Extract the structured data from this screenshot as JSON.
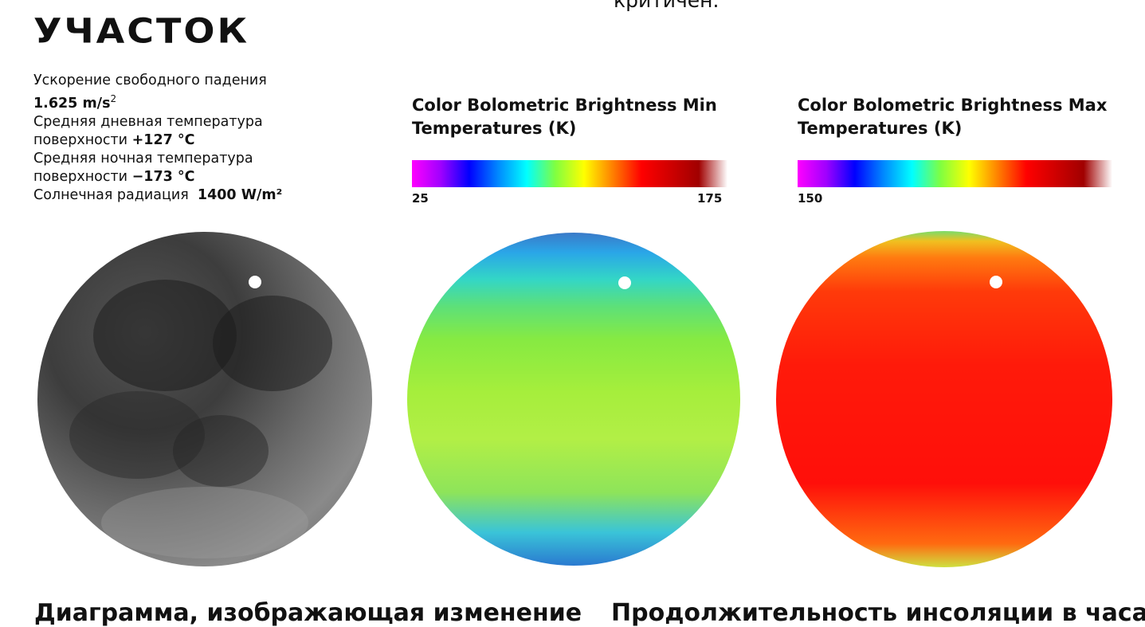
{
  "header": {
    "top_fragment": "критичен.",
    "title": "УЧАСТОК"
  },
  "stats": {
    "gravity_label": "Ускорение свободного падения",
    "gravity_value": "1.625 m/s",
    "gravity_sup": "2",
    "day_temp_label_1": "Средняя дневная температура",
    "day_temp_label_2": "поверхности",
    "day_temp_value": "+127 °C",
    "night_temp_label_1": "Средняя ночная температура",
    "night_temp_label_2": "поверхности",
    "night_temp_value": "−173 °C",
    "solar_label": "Солнечная радиация",
    "solar_value": "1400 W/m²"
  },
  "panels": {
    "min": {
      "title_1": "Color Bolometric Brightness Min",
      "title_2": "Temperatures (K)",
      "scale_min": "25",
      "scale_max": "175"
    },
    "max": {
      "title_1": "Color Bolometric Brightness Max",
      "title_2": "Temperatures (K)",
      "scale_min": "150"
    }
  },
  "footer": {
    "left_heading": "Диаграмма, изображающая изменение",
    "right_heading": "Продолжительность инсоляции в часах в"
  },
  "colors": {
    "scale_stops": [
      "#ff00ff",
      "#a000ff",
      "#0000ff",
      "#0088ff",
      "#00ffff",
      "#80ff40",
      "#ffff00",
      "#ff8000",
      "#ff0000",
      "#d00000",
      "#a00000",
      "#ffffff"
    ]
  }
}
